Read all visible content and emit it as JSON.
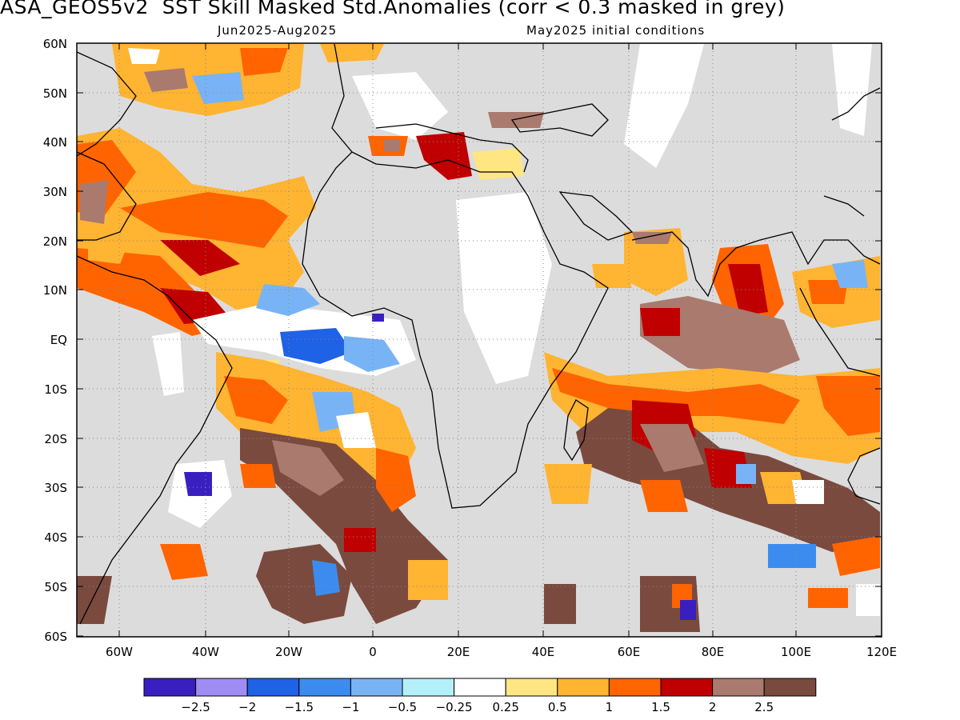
{
  "title": "ASA_GEOS5v2  SST Skill Masked Std.Anomalies (corr < 0.3 masked in grey)",
  "subtitle_left": "Jun2025-Aug2025",
  "subtitle_right": "May2025 initial conditions",
  "axes": {
    "lat_labels": [
      "60N",
      "50N",
      "40N",
      "30N",
      "20N",
      "10N",
      "EQ",
      "10S",
      "20S",
      "30S",
      "40S",
      "50S",
      "60S"
    ],
    "lon_labels": [
      "60W",
      "40W",
      "20W",
      "0",
      "20E",
      "40E",
      "60E",
      "80E",
      "100E",
      "120E"
    ]
  },
  "colorbar": {
    "colors": [
      "#3a1fc0",
      "#a08cf5",
      "#1f62e6",
      "#3c8cf0",
      "#78b4f5",
      "#b4f0fa",
      "#ffffff",
      "#ffe682",
      "#ffb432",
      "#ff6400",
      "#c00000",
      "#aa7a6e",
      "#7a4a3f"
    ],
    "labels": [
      "−2.5",
      "−2",
      "−1.5",
      "−1",
      "−0.5",
      "−0.25",
      "0.25",
      "0.5",
      "1",
      "1.5",
      "2",
      "2.5"
    ]
  },
  "mask_color": "#dcdcdc"
}
